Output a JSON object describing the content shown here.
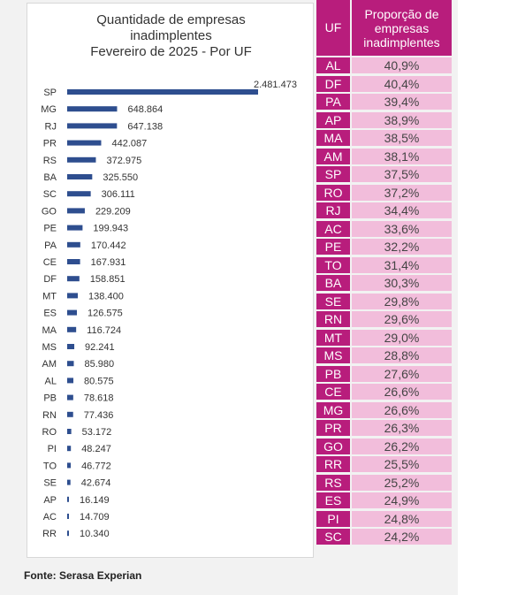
{
  "chart_data": [
    {
      "type": "bar",
      "orientation": "horizontal",
      "title": "Quantidade de empresas\ninadimplentes\nFevereiro de 2025 - Por UF",
      "categories": [
        "SP",
        "MG",
        "RJ",
        "PR",
        "RS",
        "BA",
        "SC",
        "GO",
        "PE",
        "PA",
        "CE",
        "DF",
        "MT",
        "ES",
        "MA",
        "MS",
        "AM",
        "AL",
        "PB",
        "RN",
        "RO",
        "PI",
        "TO",
        "SE",
        "AP",
        "AC",
        "RR"
      ],
      "values": [
        2481473,
        648864,
        647138,
        442087,
        372975,
        325550,
        306111,
        229209,
        199943,
        170442,
        167931,
        158851,
        138400,
        126575,
        116724,
        92241,
        85980,
        80575,
        78618,
        77436,
        53172,
        48247,
        46772,
        42674,
        16149,
        14709,
        10340
      ],
      "value_labels": [
        "2.481.473",
        "648.864",
        "647.138",
        "442.087",
        "372.975",
        "325.550",
        "306.111",
        "229.209",
        "199.943",
        "170.442",
        "167.931",
        "158.851",
        "138.400",
        "126.575",
        "116.724",
        "92.241",
        "85.980",
        "80.575",
        "78.618",
        "77.436",
        "53.172",
        "48.247",
        "46.772",
        "42.674",
        "16.149",
        "14.709",
        "10.340"
      ],
      "bar_color": "#2e4e8f",
      "grid": false
    },
    {
      "type": "table",
      "columns": [
        "UF",
        "Proporção de\nempresas\ninadimplentes"
      ],
      "rows": [
        [
          "AL",
          "40,9%"
        ],
        [
          "DF",
          "40,4%"
        ],
        [
          "PA",
          "39,4%"
        ],
        [
          "AP",
          "38,9%"
        ],
        [
          "MA",
          "38,5%"
        ],
        [
          "AM",
          "38,1%"
        ],
        [
          "SP",
          "37,5%"
        ],
        [
          "RO",
          "37,2%"
        ],
        [
          "RJ",
          "34,4%"
        ],
        [
          "AC",
          "33,6%"
        ],
        [
          "PE",
          "32,2%"
        ],
        [
          "TO",
          "31,4%"
        ],
        [
          "BA",
          "30,3%"
        ],
        [
          "SE",
          "29,8%"
        ],
        [
          "RN",
          "29,6%"
        ],
        [
          "MT",
          "29,0%"
        ],
        [
          "MS",
          "28,8%"
        ],
        [
          "PB",
          "27,6%"
        ],
        [
          "CE",
          "26,6%"
        ],
        [
          "MG",
          "26,6%"
        ],
        [
          "PR",
          "26,3%"
        ],
        [
          "GO",
          "26,2%"
        ],
        [
          "RR",
          "25,5%"
        ],
        [
          "RS",
          "25,2%"
        ],
        [
          "ES",
          "24,9%"
        ],
        [
          "PI",
          "24,8%"
        ],
        [
          "SC",
          "24,2%"
        ]
      ],
      "header_color": "#b81d7c",
      "cell_color": "#f2bddb"
    }
  ],
  "source": "Fonte: Serasa Experian"
}
